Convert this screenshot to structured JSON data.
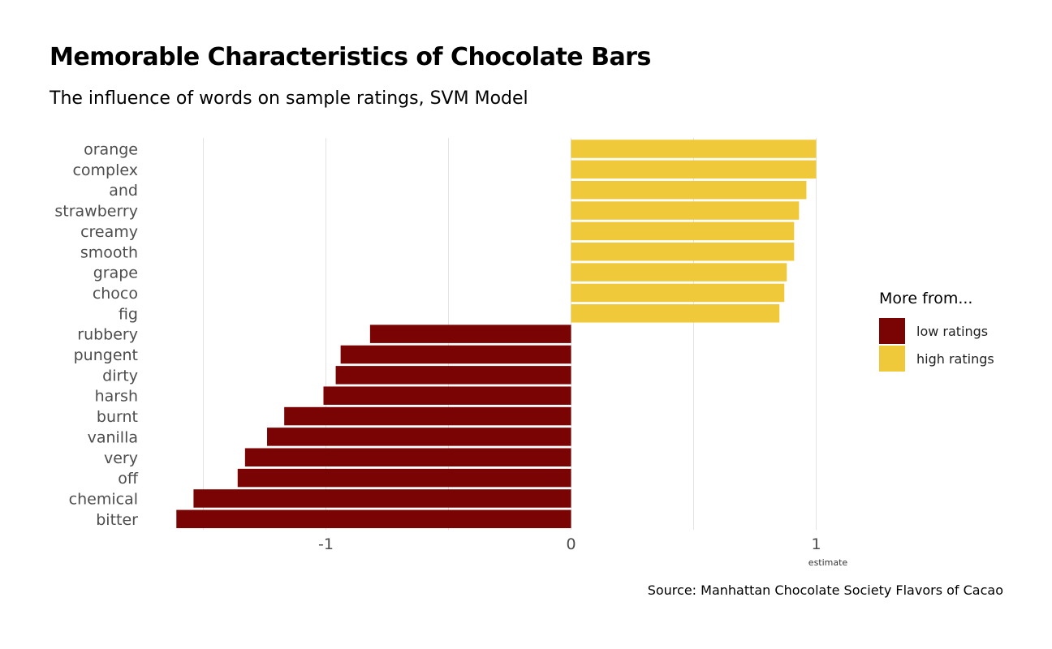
{
  "title": "Memorable Characteristics of Chocolate Bars",
  "subtitle": "The influence of words on sample ratings, SVM Model",
  "caption": "Source: Manhattan Chocolate Society Flavors of Cacao",
  "legend": {
    "title": "More from...",
    "items": [
      {
        "label": "low ratings",
        "color": "#7a0403"
      },
      {
        "label": "high ratings",
        "color": "#f0c93a"
      }
    ]
  },
  "chart_data": {
    "type": "bar",
    "orientation": "horizontal",
    "xlabel": "estimate",
    "ylabel": "",
    "xlim": [
      -1.69,
      1.15
    ],
    "x_ticks": [
      -1,
      0,
      1
    ],
    "x_tick_labels": [
      "-1",
      "0",
      "1"
    ],
    "grid": "vertical",
    "legend_position": "right",
    "categories": [
      "orange",
      "complex",
      "and",
      "strawberry",
      "creamy",
      "smooth",
      "grape",
      "choco",
      "fig",
      "rubbery",
      "pungent",
      "dirty",
      "harsh",
      "burnt",
      "vanilla",
      "very",
      "off",
      "chemical",
      "bitter"
    ],
    "values": [
      1.0,
      1.0,
      0.96,
      0.93,
      0.91,
      0.91,
      0.88,
      0.87,
      0.85,
      -0.82,
      -0.94,
      -0.96,
      -1.01,
      -1.17,
      -1.24,
      -1.33,
      -1.36,
      -1.54,
      -1.61
    ],
    "groups": [
      "high ratings",
      "high ratings",
      "high ratings",
      "high ratings",
      "high ratings",
      "high ratings",
      "high ratings",
      "high ratings",
      "high ratings",
      "low ratings",
      "low ratings",
      "low ratings",
      "low ratings",
      "low ratings",
      "low ratings",
      "low ratings",
      "low ratings",
      "low ratings",
      "low ratings"
    ]
  }
}
